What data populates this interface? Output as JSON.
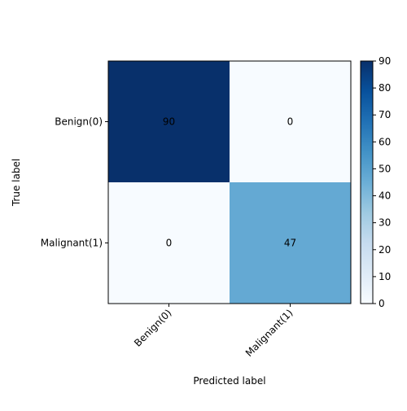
{
  "chart_data": {
    "type": "heatmap",
    "title": "",
    "xlabel": "Predicted label",
    "ylabel": "True label",
    "x_categories": [
      "Benign(0)",
      "Malignant(1)"
    ],
    "y_categories": [
      "Benign(0)",
      "Malignant(1)"
    ],
    "matrix": [
      [
        90,
        0
      ],
      [
        0,
        47
      ]
    ],
    "colorbar": {
      "min": 0,
      "max": 90,
      "ticks": [
        0,
        10,
        20,
        30,
        40,
        50,
        60,
        70,
        80,
        90
      ],
      "colormap": "Blues"
    },
    "grid": false
  }
}
